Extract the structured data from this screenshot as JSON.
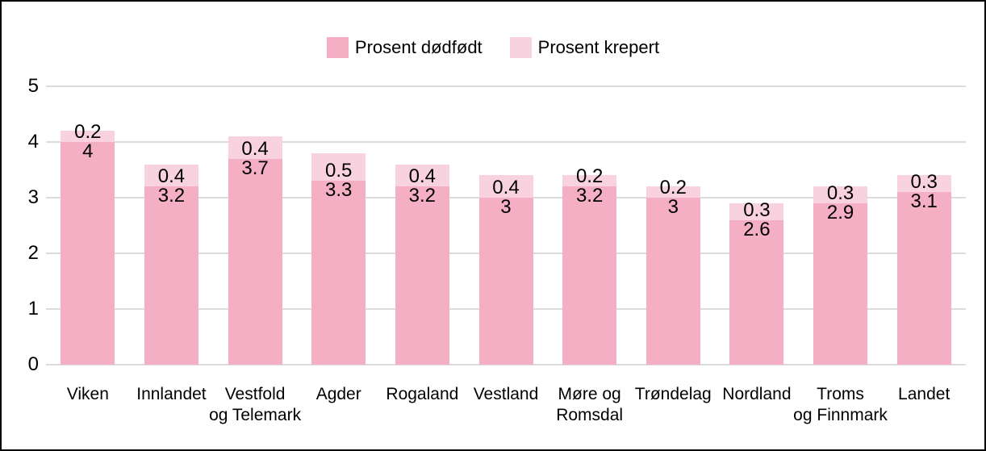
{
  "chart_data": {
    "type": "bar",
    "stacked": true,
    "title": "",
    "xlabel": "",
    "ylabel": "",
    "categories": [
      "Viken",
      "Innlandet",
      "Vestfold\nog Telemark",
      "Agder",
      "Rogaland",
      "Vestland",
      "Møre og\nRomsdal",
      "Trøndelag",
      "Nordland",
      "Troms\nog Finnmark",
      "Landet"
    ],
    "series": [
      {
        "name": "Prosent dødfødt",
        "color": "#f4afc5",
        "position": "bottom",
        "values": [
          4,
          3.2,
          3.7,
          3.3,
          3.2,
          3,
          3.2,
          3,
          2.6,
          2.9,
          3.1
        ]
      },
      {
        "name": "Prosent krepert",
        "color": "#f8d2de",
        "position": "top",
        "values": [
          0.2,
          0.4,
          0.4,
          0.5,
          0.4,
          0.4,
          0.2,
          0.2,
          0.3,
          0.3,
          0.3
        ]
      }
    ],
    "bar_totals": [
      4.2,
      3.6,
      4.1,
      3.8,
      3.6,
      3.4,
      3.4,
      3.2,
      2.9,
      3.2,
      3.4
    ],
    "data_labels_shown": true,
    "ylim": [
      0,
      5
    ],
    "yticks": [
      0,
      1,
      2,
      3,
      4,
      5
    ],
    "grid": true,
    "legend_position": "top-center",
    "colors": {
      "series_dodfodt": "#f4afc5",
      "series_krepert": "#f8d2de",
      "gridline": "#dcdcdc",
      "text": "#000000",
      "background": "#ffffff",
      "border": "#000000"
    }
  }
}
